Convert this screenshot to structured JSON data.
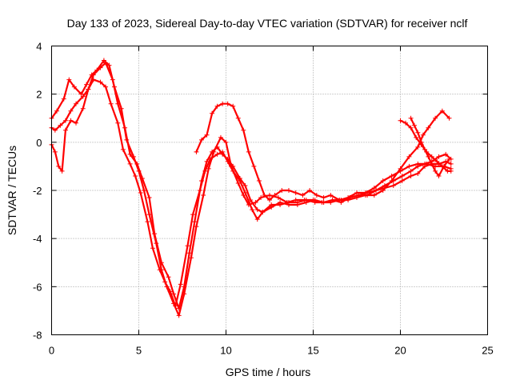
{
  "chart_data": {
    "type": "scatter",
    "title": "Day 133 of 2023, Sidereal Day-to-day VTEC variation (SDTVAR) for receiver nclf",
    "xlabel": "GPS time / hours",
    "ylabel": "SDTVAR / TECUs",
    "xlim": [
      0,
      25
    ],
    "ylim": [
      -8,
      4
    ],
    "xticks": [
      0,
      5,
      10,
      15,
      20,
      25
    ],
    "yticks": [
      -8,
      -6,
      -4,
      -2,
      0,
      2,
      4
    ],
    "grid": true,
    "marker": "plus",
    "color": "#ff0000",
    "series": [
      {
        "x": [
          0.0,
          0.3,
          0.7,
          1.0,
          1.3,
          1.7,
          2.0,
          2.3,
          2.6,
          3.0,
          3.3,
          3.6,
          4.0,
          4.3,
          4.7,
          5.0,
          5.3,
          5.6,
          6.0,
          6.3,
          6.6,
          7.0,
          7.3,
          7.6,
          8.0,
          8.3,
          8.7,
          9.0,
          9.3,
          9.7,
          10.0,
          10.3,
          10.7,
          11.0,
          11.3,
          11.7,
          12.0,
          12.5,
          13.0,
          13.5,
          14.0,
          14.5,
          15.0,
          15.5,
          16.0,
          16.5,
          17.0,
          17.5,
          18.0,
          18.5,
          19.0,
          19.5,
          20.0,
          20.5,
          21.0,
          21.5,
          22.0,
          22.5,
          22.9
        ],
        "y": [
          1.0,
          1.3,
          1.8,
          2.6,
          2.3,
          2.0,
          2.4,
          2.8,
          3.0,
          3.4,
          3.2,
          2.3,
          1.4,
          0.1,
          -0.6,
          -1.2,
          -2.0,
          -3.0,
          -4.2,
          -5.3,
          -6.0,
          -6.7,
          -7.2,
          -6.3,
          -4.8,
          -3.5,
          -2.2,
          -1.1,
          -0.4,
          0.2,
          0.0,
          -1.0,
          -1.7,
          -2.2,
          -2.6,
          -2.5,
          -2.3,
          -2.2,
          -2.3,
          -2.5,
          -2.4,
          -2.4,
          -2.4,
          -2.5,
          -2.5,
          -2.4,
          -2.3,
          -2.1,
          -2.1,
          -1.9,
          -1.6,
          -1.4,
          -1.2,
          -1.0,
          -0.9,
          -0.9,
          -1.0,
          -1.0,
          -1.1
        ]
      },
      {
        "x": [
          0.0,
          0.2,
          0.5,
          0.8,
          1.1,
          1.4,
          1.8,
          2.1,
          2.4,
          2.8,
          3.1,
          3.4,
          3.8,
          4.1,
          4.5,
          4.8,
          5.1,
          5.5,
          5.8,
          6.2,
          6.5,
          6.8,
          7.1,
          7.4,
          7.8,
          8.1,
          8.5,
          8.8,
          9.1,
          9.5,
          9.8,
          10.1,
          10.4,
          10.8,
          11.1,
          11.5,
          11.8,
          12.1,
          12.6,
          13.1,
          13.6,
          14.1,
          14.6,
          15.1,
          15.6,
          16.1,
          16.6,
          17.1,
          17.6,
          18.1,
          18.6,
          19.1,
          19.6,
          20.1,
          20.6,
          21.0,
          21.4,
          21.8,
          22.2,
          22.6,
          22.9
        ],
        "y": [
          0.6,
          0.5,
          0.7,
          0.9,
          1.3,
          1.6,
          1.9,
          2.2,
          2.6,
          2.5,
          2.3,
          1.6,
          0.8,
          -0.3,
          -0.9,
          -1.4,
          -2.1,
          -3.3,
          -4.4,
          -5.3,
          -5.8,
          -6.2,
          -6.8,
          -5.9,
          -4.3,
          -3.0,
          -2.0,
          -1.2,
          -0.7,
          -0.5,
          -0.4,
          -0.8,
          -1.2,
          -1.6,
          -2.1,
          -2.8,
          -3.2,
          -2.9,
          -2.6,
          -2.6,
          -2.5,
          -2.5,
          -2.4,
          -2.5,
          -2.5,
          -2.4,
          -2.5,
          -2.3,
          -2.2,
          -2.2,
          -2.0,
          -1.9,
          -1.8,
          -1.6,
          -1.4,
          -1.3,
          -1.0,
          -0.9,
          -0.9,
          -0.8,
          -0.9
        ]
      },
      {
        "x": [
          0.0,
          0.2,
          0.4,
          0.6,
          0.8,
          1.1,
          1.4,
          1.8,
          2.1,
          2.4,
          2.8,
          3.1,
          3.5,
          3.8,
          4.2,
          4.5,
          4.9,
          5.2,
          5.6,
          5.9,
          6.3,
          6.7,
          7.0,
          7.3,
          7.6,
          7.9,
          8.2,
          8.6,
          8.9,
          9.2,
          9.5,
          9.8,
          10.1,
          10.4,
          10.8,
          11.1,
          11.4,
          11.8,
          12.1,
          12.6,
          13.1,
          13.6,
          14.1,
          14.6,
          15.1,
          15.6,
          16.1,
          16.6,
          17.1,
          17.6,
          18.1,
          18.6,
          19.1,
          19.6,
          20.1,
          20.6,
          21.0,
          21.4,
          21.8,
          22.2,
          22.6,
          22.9
        ],
        "y": [
          -0.1,
          -0.4,
          -1.0,
          -1.2,
          0.5,
          0.9,
          0.8,
          1.4,
          2.2,
          2.8,
          3.1,
          3.3,
          2.6,
          1.6,
          0.6,
          -0.5,
          -0.9,
          -1.5,
          -2.3,
          -3.8,
          -5.0,
          -5.6,
          -6.3,
          -6.9,
          -6.0,
          -4.6,
          -3.3,
          -1.6,
          -0.8,
          -0.4,
          -0.2,
          -0.5,
          -0.7,
          -1.0,
          -1.5,
          -1.8,
          -2.4,
          -2.8,
          -2.9,
          -2.7,
          -2.5,
          -2.6,
          -2.6,
          -2.5,
          -2.4,
          -2.5,
          -2.4,
          -2.4,
          -2.3,
          -2.2,
          -2.1,
          -2.0,
          -1.8,
          -1.6,
          -1.4,
          -1.2,
          -1.0,
          -0.9,
          -0.8,
          -0.6,
          -0.5,
          -0.7
        ]
      },
      {
        "x": [
          8.3,
          8.6,
          8.9,
          9.2,
          9.5,
          9.8,
          10.1,
          10.4,
          10.7,
          11.0,
          11.3,
          11.6,
          11.9,
          12.2,
          12.5,
          12.8,
          13.2,
          13.6,
          14.0,
          14.4,
          14.8,
          15.2,
          15.6,
          16.0,
          16.5,
          17.0,
          17.5,
          18.0,
          18.5,
          19.0,
          19.5,
          20.0,
          20.5,
          21.0,
          21.3,
          21.6,
          22.0,
          22.4,
          22.8
        ],
        "y": [
          -0.4,
          0.1,
          0.3,
          1.2,
          1.5,
          1.6,
          1.6,
          1.5,
          1.0,
          0.5,
          -0.4,
          -1.0,
          -1.6,
          -2.2,
          -2.4,
          -2.2,
          -2.0,
          -2.0,
          -2.1,
          -2.2,
          -2.0,
          -2.2,
          -2.3,
          -2.2,
          -2.4,
          -2.4,
          -2.3,
          -2.2,
          -2.2,
          -2.0,
          -1.6,
          -1.1,
          -0.6,
          -0.2,
          0.3,
          0.6,
          1.0,
          1.3,
          1.0
        ]
      },
      {
        "x": [
          20.0,
          20.3,
          20.6,
          20.9,
          21.2,
          21.5,
          21.8,
          22.1,
          22.4,
          22.7,
          22.9
        ],
        "y": [
          0.9,
          0.8,
          0.6,
          0.2,
          -0.1,
          -0.4,
          -0.6,
          -0.8,
          -1.0,
          -1.2,
          -1.2
        ]
      },
      {
        "x": [
          20.6,
          20.8,
          21.0,
          21.2,
          21.4,
          21.6,
          21.8,
          22.0,
          22.2,
          22.5,
          22.8
        ],
        "y": [
          1.0,
          0.7,
          0.4,
          0.0,
          -0.3,
          -0.6,
          -0.9,
          -1.2,
          -1.4,
          -1.0,
          -0.7
        ]
      }
    ]
  }
}
